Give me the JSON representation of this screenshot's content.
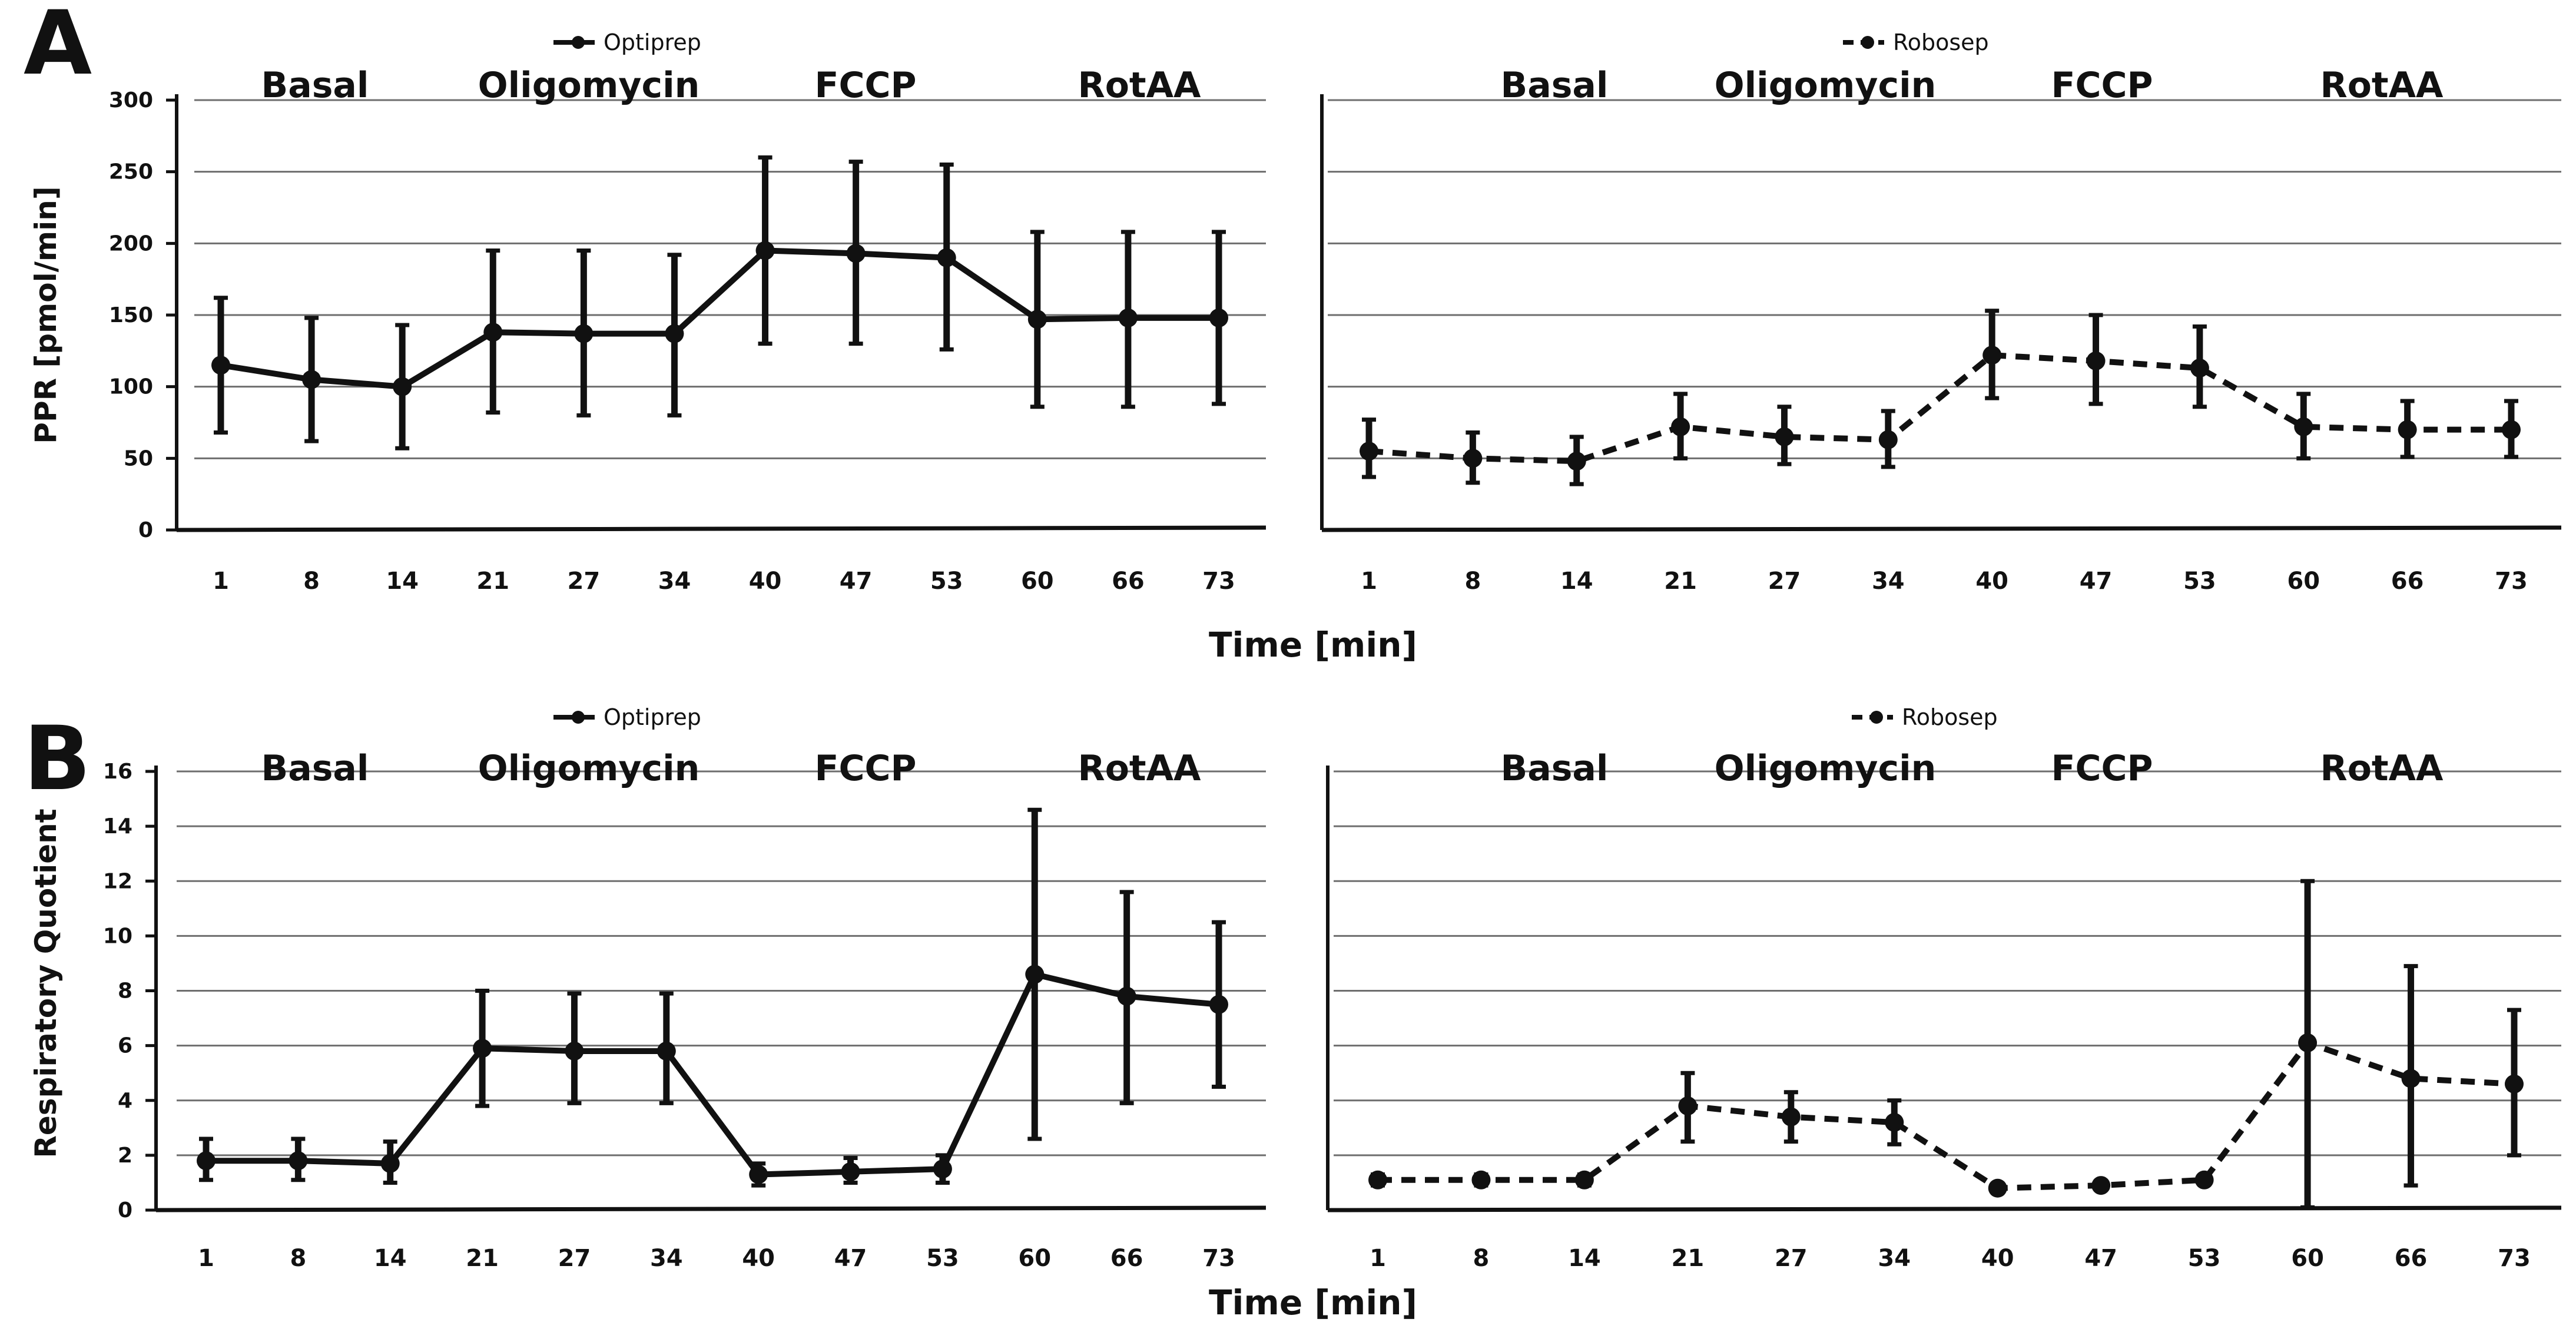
{
  "chart_data": [
    {
      "panel": "A",
      "type": "line",
      "ylabel": "PPR [pmol/min]",
      "xlabel": "Time [min]",
      "ylim": [
        0,
        300
      ],
      "yticks": [
        "0",
        "50",
        "100",
        "150",
        "200",
        "250",
        "300"
      ],
      "phases": [
        "Basal",
        "Oligomycin",
        "FCCP",
        "RotAA"
      ],
      "x": [
        "1",
        "8",
        "14",
        "21",
        "27",
        "34",
        "40",
        "47",
        "53",
        "60",
        "66",
        "73"
      ],
      "grid": true,
      "series": [
        {
          "name": "Optiprep",
          "style": "solid",
          "values": [
            115,
            105,
            100,
            138,
            137,
            137,
            195,
            193,
            190,
            147,
            148,
            148
          ],
          "err_high": [
            162,
            148,
            143,
            195,
            195,
            192,
            260,
            257,
            255,
            208,
            208,
            208
          ],
          "err_low": [
            68,
            62,
            57,
            82,
            80,
            80,
            130,
            130,
            126,
            86,
            86,
            88
          ]
        },
        {
          "name": "Robosep",
          "style": "dashed",
          "values": [
            55,
            50,
            48,
            72,
            65,
            63,
            122,
            118,
            113,
            72,
            70,
            70
          ],
          "err_high": [
            77,
            68,
            65,
            95,
            86,
            83,
            153,
            150,
            142,
            95,
            90,
            90
          ],
          "err_low": [
            37,
            33,
            32,
            50,
            46,
            44,
            92,
            88,
            86,
            50,
            51,
            51
          ]
        }
      ]
    },
    {
      "panel": "B",
      "type": "line",
      "ylabel": "Respiratory Quotient",
      "xlabel": "Time [min]",
      "ylim": [
        0,
        16
      ],
      "yticks": [
        "0",
        "2",
        "4",
        "6",
        "8",
        "10",
        "12",
        "14",
        "16"
      ],
      "phases": [
        "Basal",
        "Oligomycin",
        "FCCP",
        "RotAA"
      ],
      "x": [
        "1",
        "8",
        "14",
        "21",
        "27",
        "34",
        "40",
        "47",
        "53",
        "60",
        "66",
        "73"
      ],
      "grid": true,
      "series": [
        {
          "name": "Optiprep",
          "style": "solid",
          "values": [
            1.8,
            1.8,
            1.7,
            5.9,
            5.8,
            5.8,
            1.3,
            1.4,
            1.5,
            8.6,
            7.8,
            7.5
          ],
          "err_high": [
            2.6,
            2.6,
            2.5,
            8.0,
            7.9,
            7.9,
            1.7,
            1.9,
            2.0,
            14.6,
            11.6,
            10.5
          ],
          "err_low": [
            1.1,
            1.1,
            1.0,
            3.8,
            3.9,
            3.9,
            0.9,
            1.0,
            1.0,
            2.6,
            3.9,
            4.5
          ]
        },
        {
          "name": "Robosep",
          "style": "dashed",
          "values": [
            1.1,
            1.1,
            1.1,
            3.8,
            3.4,
            3.2,
            0.8,
            0.9,
            1.1,
            6.1,
            4.8,
            4.6
          ],
          "err_high": [
            1.3,
            1.3,
            1.3,
            5.0,
            4.3,
            4.0,
            0.9,
            1.0,
            1.2,
            12.0,
            8.9,
            7.3
          ],
          "err_low": [
            0.9,
            0.9,
            0.9,
            2.5,
            2.5,
            2.4,
            0.7,
            0.8,
            1.0,
            0.1,
            0.9,
            2.0
          ]
        }
      ]
    }
  ]
}
